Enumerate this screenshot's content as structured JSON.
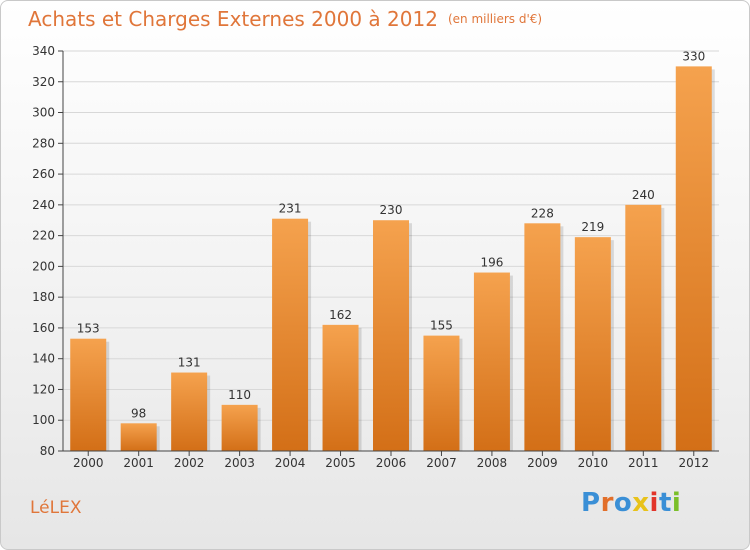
{
  "title": "Achats et Charges Externes 2000 à 2012",
  "unit": "(en milliers d'€)",
  "commune": "LéLEX",
  "logo": {
    "text": "Proxiti",
    "colors": [
      "#3a8fd6",
      "#e26f2a",
      "#3a8fd6",
      "#e8c21a",
      "#e2342a",
      "#3a8fd6",
      "#7bbf2a"
    ]
  },
  "colors": {
    "accent": "#e0763a",
    "bar_top": "#f5a24e",
    "bar_bottom": "#d36f17"
  },
  "chart_data": {
    "type": "bar",
    "categories": [
      "2000",
      "2001",
      "2002",
      "2003",
      "2004",
      "2005",
      "2006",
      "2007",
      "2008",
      "2009",
      "2010",
      "2011",
      "2012"
    ],
    "values": [
      153,
      98,
      131,
      110,
      231,
      162,
      230,
      155,
      196,
      228,
      219,
      240,
      330
    ],
    "ylim": [
      80,
      340
    ],
    "yticks": [
      80,
      100,
      120,
      140,
      160,
      180,
      200,
      220,
      240,
      260,
      280,
      300,
      320,
      340
    ],
    "grid": "horizontal",
    "data_labels": true
  }
}
